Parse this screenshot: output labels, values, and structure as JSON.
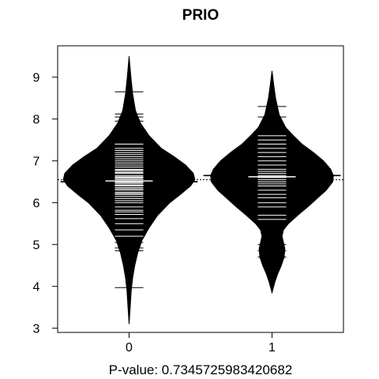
{
  "chart_data": {
    "type": "beanplot",
    "title": "PRIO",
    "subtitle": "P-value: 0.7345725983420682",
    "xlabel": "",
    "ylabel": "",
    "categories": [
      "0",
      "1"
    ],
    "ylim": [
      2.9,
      9.75
    ],
    "yticks": [
      3,
      4,
      5,
      6,
      7,
      8,
      9
    ],
    "overall_reference_line": 6.55,
    "grid": false,
    "legend": "none",
    "colors": {
      "bean": "#000000",
      "background": "#ffffff",
      "beanline": "#ffffff"
    },
    "beans": [
      {
        "category": "0",
        "mean_line": 6.5,
        "median_line": 6.52,
        "density": [
          [
            3.1,
            0.0
          ],
          [
            3.5,
            0.015
          ],
          [
            3.9,
            0.03
          ],
          [
            4.2,
            0.05
          ],
          [
            4.5,
            0.08
          ],
          [
            4.8,
            0.12
          ],
          [
            5.1,
            0.18
          ],
          [
            5.4,
            0.28
          ],
          [
            5.7,
            0.4
          ],
          [
            6.0,
            0.57
          ],
          [
            6.2,
            0.72
          ],
          [
            6.4,
            0.86
          ],
          [
            6.55,
            0.92
          ],
          [
            6.7,
            0.9
          ],
          [
            6.9,
            0.79
          ],
          [
            7.1,
            0.63
          ],
          [
            7.3,
            0.45
          ],
          [
            7.6,
            0.28
          ],
          [
            7.9,
            0.16
          ],
          [
            8.2,
            0.09
          ],
          [
            8.6,
            0.05
          ],
          [
            9.0,
            0.025
          ],
          [
            9.5,
            0.0
          ]
        ],
        "observations": [
          3.97,
          4.85,
          4.92,
          5.05,
          5.2,
          5.35,
          5.5,
          5.62,
          5.72,
          5.78,
          5.82,
          5.9,
          6.0,
          6.05,
          6.1,
          6.15,
          6.2,
          6.22,
          6.25,
          6.3,
          6.33,
          6.36,
          6.4,
          6.42,
          6.45,
          6.48,
          6.5,
          6.55,
          6.58,
          6.6,
          6.62,
          6.65,
          6.7,
          6.72,
          6.75,
          6.78,
          6.8,
          6.85,
          6.9,
          6.95,
          7.0,
          7.05,
          7.1,
          7.15,
          7.2,
          7.25,
          7.3,
          7.4,
          7.8,
          7.95,
          8.05,
          8.12,
          8.65
        ]
      },
      {
        "category": "1",
        "mean_line": 6.65,
        "median_line": 6.62,
        "density": [
          [
            3.85,
            0.0
          ],
          [
            4.1,
            0.04
          ],
          [
            4.3,
            0.08
          ],
          [
            4.5,
            0.13
          ],
          [
            4.7,
            0.17
          ],
          [
            4.9,
            0.18
          ],
          [
            5.05,
            0.16
          ],
          [
            5.2,
            0.14
          ],
          [
            5.35,
            0.16
          ],
          [
            5.5,
            0.23
          ],
          [
            5.7,
            0.36
          ],
          [
            5.9,
            0.5
          ],
          [
            6.1,
            0.63
          ],
          [
            6.3,
            0.76
          ],
          [
            6.5,
            0.85
          ],
          [
            6.65,
            0.86
          ],
          [
            6.8,
            0.82
          ],
          [
            7.0,
            0.72
          ],
          [
            7.2,
            0.58
          ],
          [
            7.4,
            0.42
          ],
          [
            7.6,
            0.3
          ],
          [
            7.8,
            0.19
          ],
          [
            8.1,
            0.1
          ],
          [
            8.5,
            0.05
          ],
          [
            8.8,
            0.025
          ],
          [
            9.15,
            0.0
          ]
        ],
        "observations": [
          4.7,
          4.85,
          5.0,
          5.6,
          5.7,
          5.9,
          6.0,
          6.12,
          6.2,
          6.3,
          6.4,
          6.45,
          6.5,
          6.55,
          6.6,
          6.65,
          6.7,
          6.75,
          6.8,
          6.9,
          7.0,
          7.1,
          7.2,
          7.3,
          7.4,
          7.5,
          7.6,
          7.8,
          8.05,
          8.3
        ]
      }
    ]
  }
}
